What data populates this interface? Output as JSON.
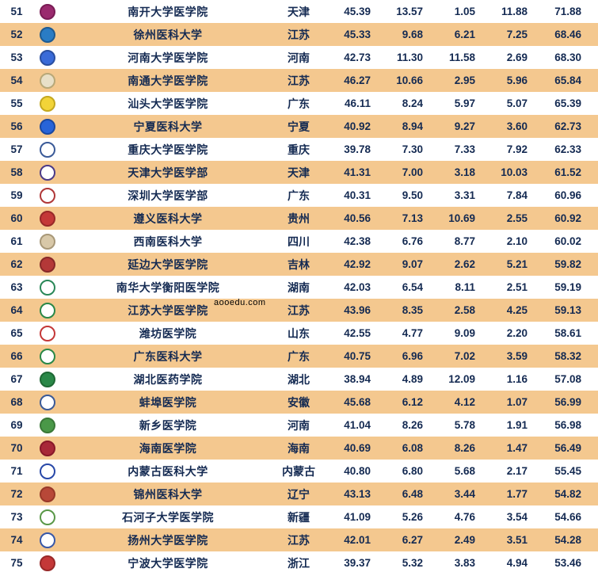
{
  "watermark_text": "aooedu.com",
  "bg_watermark": "医",
  "row_bg_even": "#f4c88f",
  "row_bg_odd": "#ffffff",
  "text_color": "#142a52",
  "rows": [
    {
      "rank": "51",
      "logo_bg": "#9a2a6e",
      "logo_border": "#7a1c55",
      "name": "南开大学医学院",
      "prov": "天津",
      "c1": "45.39",
      "c2": "13.57",
      "c3": "1.05",
      "c4": "11.88",
      "c5": "71.88"
    },
    {
      "rank": "52",
      "logo_bg": "#2a7cc4",
      "logo_border": "#1e5a90",
      "name": "徐州医科大学",
      "prov": "江苏",
      "c1": "45.33",
      "c2": "9.68",
      "c3": "6.21",
      "c4": "7.25",
      "c5": "68.46"
    },
    {
      "rank": "53",
      "logo_bg": "#3a6bd8",
      "logo_border": "#2a4fa0",
      "name": "河南大学医学院",
      "prov": "河南",
      "c1": "42.73",
      "c2": "11.30",
      "c3": "11.58",
      "c4": "2.69",
      "c5": "68.30"
    },
    {
      "rank": "54",
      "logo_bg": "#e8e0c8",
      "logo_border": "#b8a878",
      "name": "南通大学医学院",
      "prov": "江苏",
      "c1": "46.27",
      "c2": "10.66",
      "c3": "2.95",
      "c4": "5.96",
      "c5": "65.84"
    },
    {
      "rank": "55",
      "logo_bg": "#f2d438",
      "logo_border": "#c4a820",
      "name": "汕头大学医学院",
      "prov": "广东",
      "c1": "46.11",
      "c2": "8.24",
      "c3": "5.97",
      "c4": "5.07",
      "c5": "65.39"
    },
    {
      "rank": "56",
      "logo_bg": "#2864d8",
      "logo_border": "#1a48a0",
      "name": "宁夏医科大学",
      "prov": "宁夏",
      "c1": "40.92",
      "c2": "8.94",
      "c3": "9.27",
      "c4": "3.60",
      "c5": "62.73"
    },
    {
      "rank": "57",
      "logo_bg": "#ffffff",
      "logo_border": "#3a5a98",
      "name": "重庆大学医学院",
      "prov": "重庆",
      "c1": "39.78",
      "c2": "7.30",
      "c3": "7.33",
      "c4": "7.92",
      "c5": "62.33"
    },
    {
      "rank": "58",
      "logo_bg": "#ffffff",
      "logo_border": "#4a3a88",
      "name": "天津大学医学部",
      "prov": "天津",
      "c1": "41.31",
      "c2": "7.00",
      "c3": "3.18",
      "c4": "10.03",
      "c5": "61.52"
    },
    {
      "rank": "59",
      "logo_bg": "#ffffff",
      "logo_border": "#b03838",
      "name": "深圳大学医学部",
      "prov": "广东",
      "c1": "40.31",
      "c2": "9.50",
      "c3": "3.31",
      "c4": "7.84",
      "c5": "60.96"
    },
    {
      "rank": "60",
      "logo_bg": "#c43838",
      "logo_border": "#982828",
      "name": "遵义医科大学",
      "prov": "贵州",
      "c1": "40.56",
      "c2": "7.13",
      "c3": "10.69",
      "c4": "2.55",
      "c5": "60.92"
    },
    {
      "rank": "61",
      "logo_bg": "#d8c8a8",
      "logo_border": "#a89878",
      "name": "西南医科大学",
      "prov": "四川",
      "c1": "42.38",
      "c2": "6.76",
      "c3": "8.77",
      "c4": "2.10",
      "c5": "60.02"
    },
    {
      "rank": "62",
      "logo_bg": "#b43838",
      "logo_border": "#882828",
      "name": "延边大学医学院",
      "prov": "吉林",
      "c1": "42.92",
      "c2": "9.07",
      "c3": "2.62",
      "c4": "5.21",
      "c5": "59.82"
    },
    {
      "rank": "63",
      "logo_bg": "#ffffff",
      "logo_border": "#2a8858",
      "name": "南华大学衡阳医学院",
      "prov": "湖南",
      "c1": "42.03",
      "c2": "6.54",
      "c3": "8.11",
      "c4": "2.51",
      "c5": "59.19"
    },
    {
      "rank": "64",
      "logo_bg": "#ffffff",
      "logo_border": "#2a8848",
      "name": "江苏大学医学院",
      "prov": "江苏",
      "c1": "43.96",
      "c2": "8.35",
      "c3": "2.58",
      "c4": "4.25",
      "c5": "59.13"
    },
    {
      "rank": "65",
      "logo_bg": "#ffffff",
      "logo_border": "#c43838",
      "name": "潍坊医学院",
      "prov": "山东",
      "c1": "42.55",
      "c2": "4.77",
      "c3": "9.09",
      "c4": "2.20",
      "c5": "58.61"
    },
    {
      "rank": "66",
      "logo_bg": "#ffffff",
      "logo_border": "#2a8848",
      "name": "广东医科大学",
      "prov": "广东",
      "c1": "40.75",
      "c2": "6.96",
      "c3": "7.02",
      "c4": "3.59",
      "c5": "58.32"
    },
    {
      "rank": "67",
      "logo_bg": "#2a8848",
      "logo_border": "#1e6834",
      "name": "湖北医药学院",
      "prov": "湖北",
      "c1": "38.94",
      "c2": "4.89",
      "c3": "12.09",
      "c4": "1.16",
      "c5": "57.08"
    },
    {
      "rank": "68",
      "logo_bg": "#ffffff",
      "logo_border": "#3a5a98",
      "name": "蚌埠医学院",
      "prov": "安徽",
      "c1": "45.68",
      "c2": "6.12",
      "c3": "4.12",
      "c4": "1.07",
      "c5": "56.99"
    },
    {
      "rank": "69",
      "logo_bg": "#4a9848",
      "logo_border": "#3a7838",
      "name": "新乡医学院",
      "prov": "河南",
      "c1": "41.04",
      "c2": "8.26",
      "c3": "5.78",
      "c4": "1.91",
      "c5": "56.98"
    },
    {
      "rank": "70",
      "logo_bg": "#a82838",
      "logo_border": "#881828",
      "name": "海南医学院",
      "prov": "海南",
      "c1": "40.69",
      "c2": "6.08",
      "c3": "8.26",
      "c4": "1.47",
      "c5": "56.49"
    },
    {
      "rank": "71",
      "logo_bg": "#ffffff",
      "logo_border": "#2848a8",
      "name": "内蒙古医科大学",
      "prov": "内蒙古",
      "c1": "40.80",
      "c2": "6.80",
      "c3": "5.68",
      "c4": "2.17",
      "c5": "55.45"
    },
    {
      "rank": "72",
      "logo_bg": "#b84838",
      "logo_border": "#983828",
      "name": "锦州医科大学",
      "prov": "辽宁",
      "c1": "43.13",
      "c2": "6.48",
      "c3": "3.44",
      "c4": "1.77",
      "c5": "54.82"
    },
    {
      "rank": "73",
      "logo_bg": "#ffffff",
      "logo_border": "#5a9848",
      "name": "石河子大学医学院",
      "prov": "新疆",
      "c1": "41.09",
      "c2": "5.26",
      "c3": "4.76",
      "c4": "3.54",
      "c5": "54.66"
    },
    {
      "rank": "74",
      "logo_bg": "#ffffff",
      "logo_border": "#3858a8",
      "name": "扬州大学医学院",
      "prov": "江苏",
      "c1": "42.01",
      "c2": "6.27",
      "c3": "2.49",
      "c4": "3.51",
      "c5": "54.28"
    },
    {
      "rank": "75",
      "logo_bg": "#c43838",
      "logo_border": "#982828",
      "name": "宁波大学医学院",
      "prov": "浙江",
      "c1": "39.37",
      "c2": "5.32",
      "c3": "3.83",
      "c4": "4.94",
      "c5": "53.46"
    }
  ]
}
